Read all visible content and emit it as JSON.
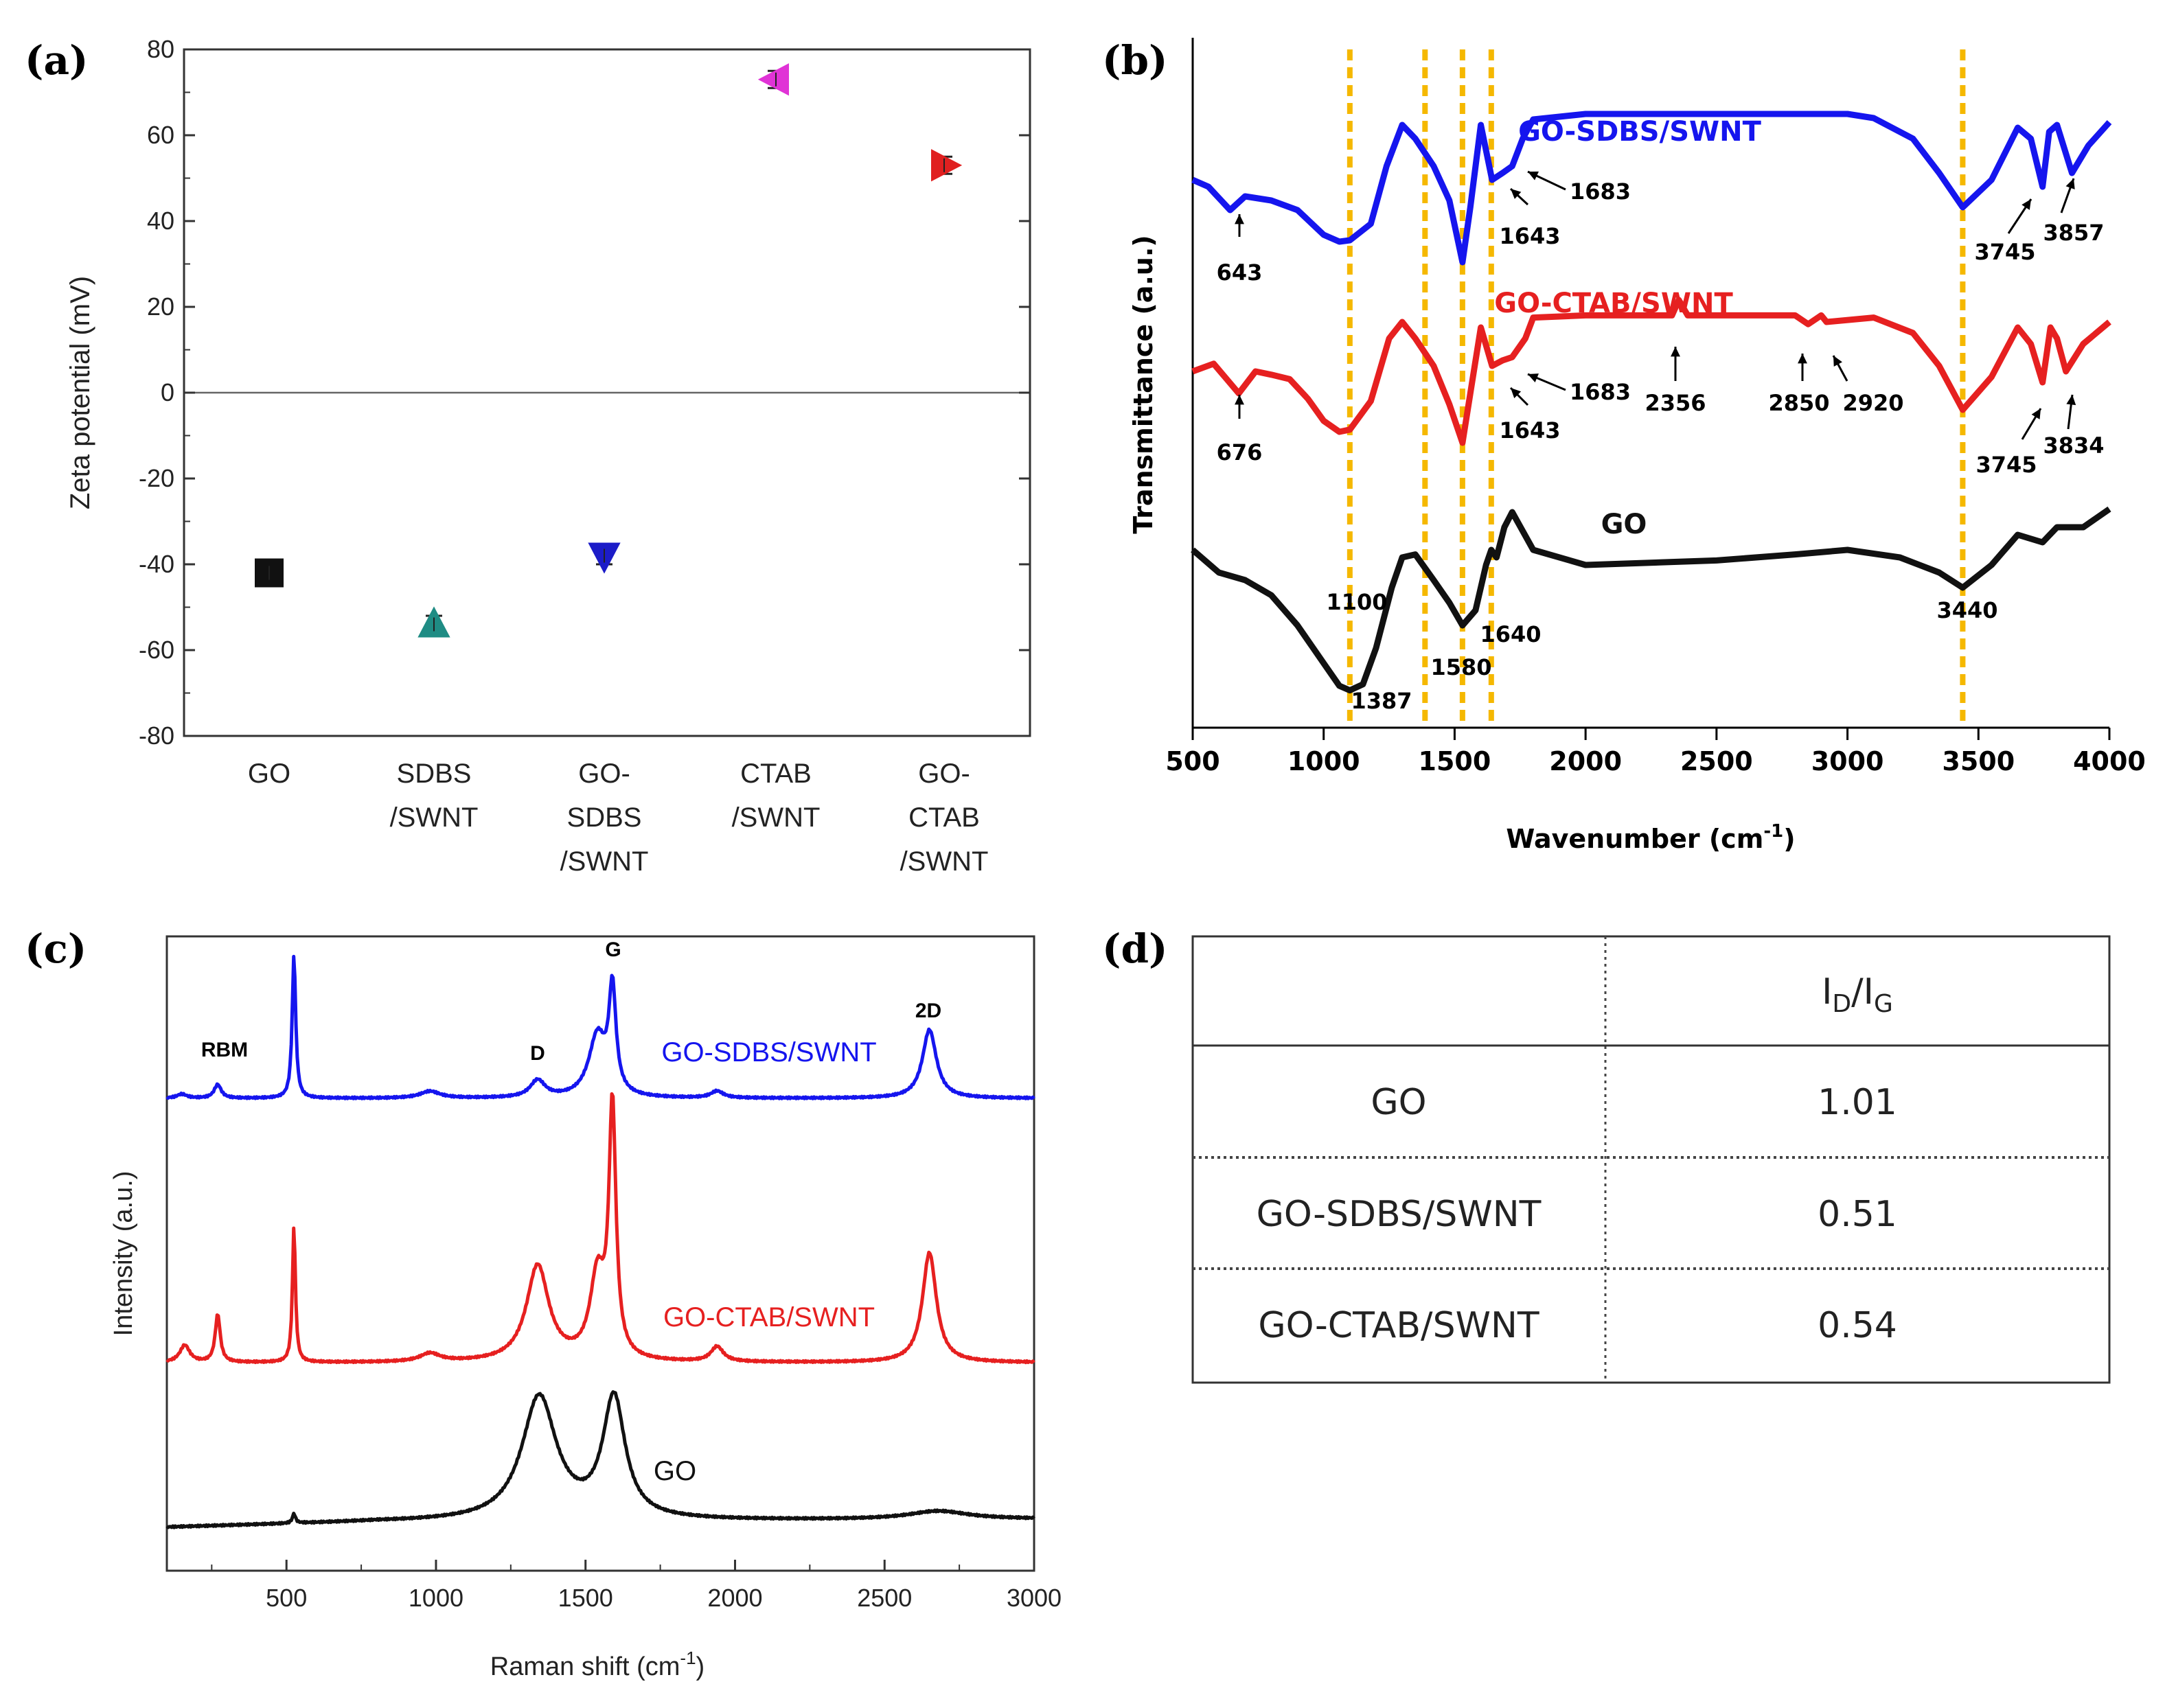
{
  "panel_labels": {
    "a": "(a)",
    "b": "(b)",
    "c": "(c)",
    "d": "(d)"
  },
  "chart_data": [
    {
      "type": "scatter",
      "panel": "(a)",
      "ylabel": "Zeta potential (mV)",
      "ylim": [
        -80,
        80
      ],
      "yticks": [
        "80",
        "60",
        "40",
        "20",
        "0",
        "-20",
        "-40",
        "-60",
        "-80"
      ],
      "categories": [
        {
          "lines": [
            "GO"
          ],
          "value": -42,
          "marker": "square",
          "color": "#111111"
        },
        {
          "lines": [
            "SDBS",
            "/SWNT"
          ],
          "value": -54,
          "marker": "triangle-up",
          "color": "#1f8c84"
        },
        {
          "lines": [
            "GO-",
            "SDBS",
            "/SWNT"
          ],
          "value": -38,
          "marker": "triangle-down",
          "color": "#1c1cc8"
        },
        {
          "lines": [
            "CTAB",
            "/SWNT"
          ],
          "value": 73,
          "marker": "triangle-left",
          "color": "#e033d6"
        },
        {
          "lines": [
            "GO-",
            "CTAB",
            "/SWNT"
          ],
          "value": 53,
          "marker": "triangle-right",
          "color": "#e02020"
        }
      ],
      "error": 2
    },
    {
      "type": "line",
      "panel": "(b)",
      "xlabel": "Wavenumber (cm",
      "xlabel_sup": "-1",
      "xlabel_close": ")",
      "ylabel": "Transmittance (a.u.)",
      "xlim": [
        500,
        4000
      ],
      "xticks": [
        "500",
        "1000",
        "1500",
        "2000",
        "2500",
        "3000",
        "3500",
        "4000"
      ],
      "guide_lines": [
        1100,
        1387,
        1530,
        1640,
        3440
      ],
      "guide_color": "#f5b800",
      "series": [
        {
          "name": "GO-SDBS/SWNT",
          "color": "#1515ee",
          "points": [
            [
              500,
              0.4
            ],
            [
              560,
              0.45
            ],
            [
              643,
              0.62
            ],
            [
              700,
              0.52
            ],
            [
              800,
              0.55
            ],
            [
              900,
              0.62
            ],
            [
              1000,
              0.8
            ],
            [
              1060,
              0.85
            ],
            [
              1100,
              0.84
            ],
            [
              1180,
              0.72
            ],
            [
              1240,
              0.3
            ],
            [
              1300,
              0.0
            ],
            [
              1350,
              0.1
            ],
            [
              1420,
              0.3
            ],
            [
              1480,
              0.55
            ],
            [
              1530,
              1.0
            ],
            [
              1560,
              0.6
            ],
            [
              1600,
              0.0
            ],
            [
              1643,
              0.4
            ],
            [
              1683,
              0.35
            ],
            [
              1720,
              0.3
            ],
            [
              1760,
              0.1
            ],
            [
              1800,
              -0.04
            ],
            [
              2000,
              -0.08
            ],
            [
              2500,
              -0.08
            ],
            [
              3000,
              -0.08
            ],
            [
              3100,
              -0.05
            ],
            [
              3250,
              0.1
            ],
            [
              3350,
              0.35
            ],
            [
              3440,
              0.6
            ],
            [
              3550,
              0.4
            ],
            [
              3650,
              0.02
            ],
            [
              3700,
              0.1
            ],
            [
              3745,
              0.45
            ],
            [
              3770,
              0.05
            ],
            [
              3800,
              0.0
            ],
            [
              3857,
              0.35
            ],
            [
              3920,
              0.15
            ],
            [
              4000,
              -0.02
            ]
          ]
        },
        {
          "name": "GO-CTAB/SWNT",
          "color": "#e62020",
          "points": [
            [
              500,
              0.35
            ],
            [
              580,
              0.28
            ],
            [
              676,
              0.55
            ],
            [
              740,
              0.35
            ],
            [
              800,
              0.38
            ],
            [
              870,
              0.42
            ],
            [
              940,
              0.6
            ],
            [
              1000,
              0.8
            ],
            [
              1060,
              0.9
            ],
            [
              1100,
              0.88
            ],
            [
              1180,
              0.62
            ],
            [
              1250,
              0.05
            ],
            [
              1300,
              -0.1
            ],
            [
              1350,
              0.05
            ],
            [
              1420,
              0.3
            ],
            [
              1480,
              0.65
            ],
            [
              1530,
              1.0
            ],
            [
              1560,
              0.55
            ],
            [
              1600,
              -0.05
            ],
            [
              1643,
              0.3
            ],
            [
              1683,
              0.25
            ],
            [
              1720,
              0.22
            ],
            [
              1770,
              0.05
            ],
            [
              1800,
              -0.14
            ],
            [
              2000,
              -0.16
            ],
            [
              2330,
              -0.16
            ],
            [
              2356,
              -0.3
            ],
            [
              2390,
              -0.16
            ],
            [
              2800,
              -0.16
            ],
            [
              2850,
              -0.08
            ],
            [
              2900,
              -0.16
            ],
            [
              2920,
              -0.1
            ],
            [
              3100,
              -0.14
            ],
            [
              3250,
              0.0
            ],
            [
              3350,
              0.3
            ],
            [
              3440,
              0.7
            ],
            [
              3550,
              0.4
            ],
            [
              3650,
              -0.05
            ],
            [
              3700,
              0.1
            ],
            [
              3745,
              0.45
            ],
            [
              3775,
              -0.05
            ],
            [
              3800,
              0.05
            ],
            [
              3834,
              0.35
            ],
            [
              3900,
              0.1
            ],
            [
              4000,
              -0.1
            ]
          ]
        },
        {
          "name": "GO",
          "color": "#111111",
          "points": [
            [
              500,
              0.05
            ],
            [
              600,
              0.2
            ],
            [
              700,
              0.25
            ],
            [
              800,
              0.35
            ],
            [
              900,
              0.55
            ],
            [
              1000,
              0.8
            ],
            [
              1060,
              0.95
            ],
            [
              1100,
              0.98
            ],
            [
              1150,
              0.94
            ],
            [
              1200,
              0.7
            ],
            [
              1260,
              0.3
            ],
            [
              1300,
              0.1
            ],
            [
              1350,
              0.08
            ],
            [
              1420,
              0.25
            ],
            [
              1480,
              0.4
            ],
            [
              1530,
              0.55
            ],
            [
              1580,
              0.45
            ],
            [
              1620,
              0.15
            ],
            [
              1640,
              0.05
            ],
            [
              1660,
              0.1
            ],
            [
              1690,
              -0.1
            ],
            [
              1720,
              -0.2
            ],
            [
              1800,
              0.05
            ],
            [
              2000,
              0.15
            ],
            [
              2500,
              0.12
            ],
            [
              2800,
              0.08
            ],
            [
              3000,
              0.05
            ],
            [
              3200,
              0.1
            ],
            [
              3350,
              0.2
            ],
            [
              3440,
              0.3
            ],
            [
              3550,
              0.15
            ],
            [
              3650,
              -0.05
            ],
            [
              3745,
              0.0
            ],
            [
              3800,
              -0.1
            ],
            [
              3900,
              -0.1
            ],
            [
              4000,
              -0.22
            ]
          ]
        }
      ],
      "annotations": [
        {
          "series": 0,
          "text": "643"
        },
        {
          "series": 0,
          "text": "1643"
        },
        {
          "series": 0,
          "text": "1683"
        },
        {
          "series": 0,
          "text": "3745"
        },
        {
          "series": 0,
          "text": "3857"
        },
        {
          "series": 1,
          "text": "676"
        },
        {
          "series": 1,
          "text": "1643"
        },
        {
          "series": 1,
          "text": "1683"
        },
        {
          "series": 1,
          "text": "2356"
        },
        {
          "series": 1,
          "text": "2850"
        },
        {
          "series": 1,
          "text": "2920"
        },
        {
          "series": 1,
          "text": "3745"
        },
        {
          "series": 1,
          "text": "3834"
        },
        {
          "series": 2,
          "text": "1100"
        },
        {
          "series": 2,
          "text": "1387"
        },
        {
          "series": 2,
          "text": "1580"
        },
        {
          "series": 2,
          "text": "1640"
        },
        {
          "series": 2,
          "text": "3440"
        }
      ]
    },
    {
      "type": "line",
      "panel": "(c)",
      "xlabel": "Raman shift (cm",
      "xlabel_sup": "-1",
      "xlabel_close": ")",
      "ylabel": "Intensity (a.u.)",
      "xlim": [
        100,
        3000
      ],
      "xticks": [
        "500",
        "1000",
        "1500",
        "2000",
        "2500",
        "3000"
      ],
      "peak_labels": [
        "RBM",
        "D",
        "G",
        "2D"
      ],
      "series": [
        {
          "name": "GO-SDBS/SWNT",
          "color": "#1515ee",
          "baseline": [
            [
              100,
              0
            ],
            [
              3000,
              0
            ]
          ],
          "peaks": [
            [
              150,
              6,
              20
            ],
            [
              270,
              20,
              14
            ],
            [
              525,
              210,
              7
            ],
            [
              980,
              10,
              40
            ],
            [
              1340,
              25,
              30
            ],
            [
              1540,
              90,
              35
            ],
            [
              1590,
              150,
              14
            ],
            [
              1940,
              10,
              25
            ],
            [
              2650,
              100,
              28
            ]
          ]
        },
        {
          "name": "GO-CTAB/SWNT",
          "color": "#e62020",
          "baseline": [
            [
              100,
              0
            ],
            [
              3000,
              0
            ]
          ],
          "peaks": [
            [
              160,
              25,
              20
            ],
            [
              270,
              70,
              10
            ],
            [
              525,
              200,
              6
            ],
            [
              980,
              12,
              40
            ],
            [
              1340,
              140,
              45
            ],
            [
              1540,
              120,
              30
            ],
            [
              1590,
              360,
              14
            ],
            [
              1940,
              22,
              25
            ],
            [
              2650,
              160,
              28
            ]
          ]
        },
        {
          "name": "GO",
          "color": "#111111",
          "baseline": [
            [
              100,
              0
            ],
            [
              800,
              8
            ],
            [
              2000,
              10
            ],
            [
              3000,
              12
            ]
          ],
          "peaks": [
            [
              525,
              14,
              6
            ],
            [
              1345,
              180,
              70
            ],
            [
              1595,
              175,
              45
            ],
            [
              2680,
              12,
              120
            ]
          ]
        }
      ]
    },
    {
      "type": "table",
      "panel": "(d)",
      "header": [
        "",
        "I",
        "D",
        "/I",
        "G"
      ],
      "rows": [
        {
          "label": "GO",
          "value": "1.01"
        },
        {
          "label": "GO-SDBS/SWNT",
          "value": "0.51"
        },
        {
          "label": "GO-CTAB/SWNT",
          "value": "0.54"
        }
      ]
    }
  ]
}
